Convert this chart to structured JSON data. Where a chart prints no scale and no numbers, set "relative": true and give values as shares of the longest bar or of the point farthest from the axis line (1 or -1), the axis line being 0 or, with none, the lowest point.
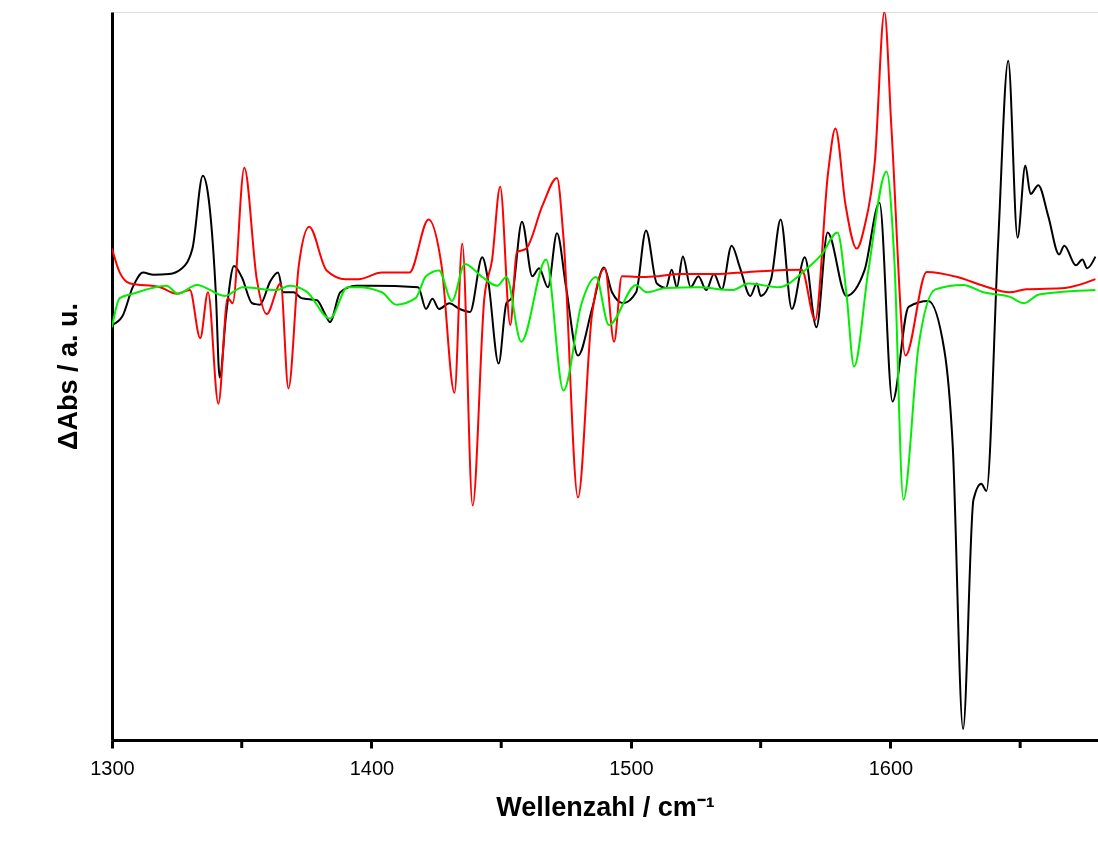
{
  "chart_data": {
    "type": "line",
    "relative": true,
    "xlabel": "Wellenzahl / cm⁻¹",
    "ylabel": "ΔAbs / a. u.",
    "xlim": [
      1300,
      1680
    ],
    "xticks": [
      1300,
      {
        "value": 1350,
        "label": null
      },
      1400,
      {
        "value": 1450,
        "label": null
      },
      1500,
      {
        "value": 1550,
        "label": null
      },
      1600,
      {
        "value": 1650,
        "label": null
      }
    ],
    "series": [
      {
        "color": "#000000",
        "x": [
          1300,
          1304,
          1308,
          1312,
          1316,
          1322,
          1327,
          1331,
          1335,
          1337,
          1340,
          1341.5,
          1344,
          1347,
          1350,
          1354,
          1357,
          1361,
          1364,
          1366,
          1370,
          1373,
          1379,
          1382,
          1384,
          1388,
          1394,
          1397,
          1400,
          1418,
          1421,
          1423.5,
          1426,
          1430,
          1434,
          1438,
          1442.7,
          1445,
          1449,
          1452,
          1454,
          1458,
          1462,
          1464.6,
          1468,
          1471.5,
          1475,
          1479.6,
          1485,
          1489.6,
          1492.7,
          1497,
          1502,
          1505.8,
          1510,
          1513.5,
          1515.7,
          1517.7,
          1520,
          1523,
          1526,
          1529,
          1532,
          1535,
          1538.8,
          1542,
          1546,
          1548.5,
          1550,
          1554,
          1557.7,
          1562,
          1567,
          1571.5,
          1575.8,
          1583,
          1590,
          1595.8,
          1600.8,
          1607,
          1614.6,
          1620.8,
          1624,
          1628,
          1632,
          1635,
          1637,
          1641.5,
          1645.4,
          1649,
          1652,
          1654,
          1657,
          1660.8,
          1665,
          1667,
          1671.5,
          1674,
          1675.8,
          1679
        ],
        "values": [
          0.57,
          0.582,
          0.622,
          0.642,
          0.639,
          0.64,
          0.648,
          0.675,
          0.775,
          0.75,
          0.615,
          0.498,
          0.585,
          0.651,
          0.636,
          0.6,
          0.598,
          0.63,
          0.642,
          0.615,
          0.615,
          0.607,
          0.604,
          0.586,
          0.574,
          0.615,
          0.624,
          0.624,
          0.624,
          0.622,
          0.592,
          0.606,
          0.592,
          0.6,
          0.592,
          0.588,
          0.663,
          0.63,
          0.517,
          0.6,
          0.607,
          0.712,
          0.637,
          0.648,
          0.622,
          0.696,
          0.622,
          0.528,
          0.592,
          0.649,
          0.615,
          0.6,
          0.615,
          0.7,
          0.627,
          0.621,
          0.646,
          0.622,
          0.664,
          0.622,
          0.637,
          0.618,
          0.64,
          0.619,
          0.679,
          0.649,
          0.61,
          0.627,
          0.61,
          0.633,
          0.715,
          0.592,
          0.663,
          0.567,
          0.697,
          0.61,
          0.645,
          0.738,
          0.465,
          0.595,
          0.603,
          0.535,
          0.405,
          0.015,
          0.33,
          0.352,
          0.342,
          0.682,
          0.933,
          0.69,
          0.789,
          0.75,
          0.762,
          0.72,
          0.667,
          0.679,
          0.652,
          0.66,
          0.648,
          0.664
        ]
      },
      {
        "color": "#ff0000",
        "x": [
          1300,
          1303,
          1307,
          1318.5,
          1325,
          1330,
          1334,
          1337,
          1341,
          1344.6,
          1346.5,
          1351,
          1355.8,
          1359.6,
          1365,
          1368,
          1372,
          1376,
          1382.7,
          1390,
          1395,
          1404,
          1414.6,
          1422,
          1427,
          1432,
          1435,
          1439,
          1443.5,
          1446.5,
          1449.6,
          1453.5,
          1456,
          1459.6,
          1466,
          1471.5,
          1474,
          1479.6,
          1485,
          1490,
          1493.5,
          1496.5,
          1505.8,
          1519.6,
          1532.7,
          1545.4,
          1565.8,
          1571,
          1576,
          1578.8,
          1582.7,
          1587,
          1590,
          1594,
          1597.7,
          1600.4,
          1605.8,
          1614,
          1625.8,
          1635.8,
          1645.8,
          1652.3,
          1667.3,
          1679
        ],
        "values": [
          0.675,
          0.642,
          0.627,
          0.622,
          0.613,
          0.618,
          0.552,
          0.615,
          0.462,
          0.607,
          0.6,
          0.786,
          0.633,
          0.585,
          0.627,
          0.483,
          0.652,
          0.705,
          0.645,
          0.633,
          0.633,
          0.642,
          0.642,
          0.715,
          0.652,
          0.477,
          0.682,
          0.322,
          0.607,
          0.66,
          0.76,
          0.57,
          0.67,
          0.675,
          0.735,
          0.772,
          0.69,
          0.333,
          0.585,
          0.648,
          0.547,
          0.637,
          0.636,
          0.64,
          0.64,
          0.643,
          0.646,
          0.577,
          0.78,
          0.84,
          0.735,
          0.675,
          0.705,
          0.795,
          1.0,
          0.84,
          0.528,
          0.643,
          0.636,
          0.624,
          0.615,
          0.619,
          0.621,
          0.633
        ]
      },
      {
        "color": "#00ee00",
        "x": [
          1300,
          1303,
          1308,
          1321,
          1325.4,
          1332.7,
          1343.5,
          1350.4,
          1363.5,
          1368.5,
          1375,
          1384,
          1390.8,
          1395,
          1404,
          1409.6,
          1417,
          1421,
          1426,
          1431,
          1436,
          1442.7,
          1448.5,
          1452,
          1457.7,
          1467.3,
          1474,
          1481,
          1486.5,
          1491.5,
          1502,
          1506,
          1513.5,
          1526,
          1539,
          1545.4,
          1557,
          1567,
          1573.5,
          1579.6,
          1583,
          1586,
          1591.5,
          1598.5,
          1601.5,
          1605,
          1610.8,
          1617.3,
          1628,
          1635.8,
          1645.8,
          1651.5,
          1657.3,
          1679
        ],
        "values": [
          0.567,
          0.607,
          0.613,
          0.624,
          0.613,
          0.625,
          0.61,
          0.622,
          0.618,
          0.624,
          0.616,
          0.579,
          0.622,
          0.622,
          0.615,
          0.598,
          0.607,
          0.637,
          0.645,
          0.603,
          0.654,
          0.636,
          0.624,
          0.636,
          0.547,
          0.66,
          0.48,
          0.6,
          0.636,
          0.57,
          0.625,
          0.615,
          0.621,
          0.622,
          0.618,
          0.627,
          0.622,
          0.645,
          0.667,
          0.697,
          0.615,
          0.513,
          0.645,
          0.781,
          0.66,
          0.33,
          0.54,
          0.619,
          0.625,
          0.615,
          0.609,
          0.6,
          0.612,
          0.618
        ]
      }
    ]
  }
}
